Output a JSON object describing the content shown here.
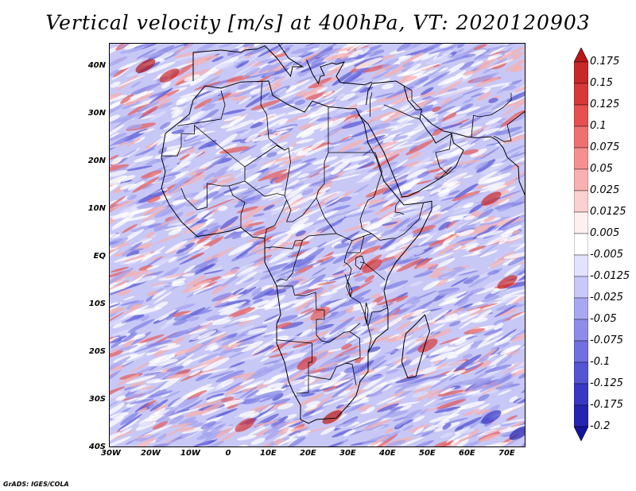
{
  "title": "Vertical velocity [m/s] at 400hPa, VT: 2020120903",
  "credit": "GrADS: IGES/COLA",
  "map": {
    "lon_range": [
      -30,
      75
    ],
    "lat_range": [
      -40,
      45
    ],
    "lon_ticks": [
      "30W",
      "20W",
      "10W",
      "0",
      "10E",
      "20E",
      "30E",
      "40E",
      "50E",
      "60E",
      "70E"
    ],
    "lat_ticks": [
      "40N",
      "30N",
      "20N",
      "10N",
      "EQ",
      "10S",
      "20S",
      "30S",
      "40S"
    ]
  },
  "colorbar": {
    "labels": [
      "0.175",
      "0.15",
      "0.125",
      "0.1",
      "0.075",
      "0.05",
      "0.025",
      "0.0125",
      "0.005",
      "-0.005",
      "-0.0125",
      "-0.025",
      "-0.05",
      "-0.075",
      "-0.1",
      "-0.125",
      "-0.175",
      "-0.2"
    ],
    "colors": [
      "#b81818",
      "#c82828",
      "#d83838",
      "#e65050",
      "#ef7070",
      "#f59090",
      "#f9b0b0",
      "#fcd0d0",
      "#fff0f0",
      "#ffffff",
      "#e2e2ff",
      "#c8c8fa",
      "#a8a8f2",
      "#8c8cea",
      "#7070e0",
      "#5454d4",
      "#3838c4",
      "#2424b0",
      "#1414a0"
    ]
  }
}
